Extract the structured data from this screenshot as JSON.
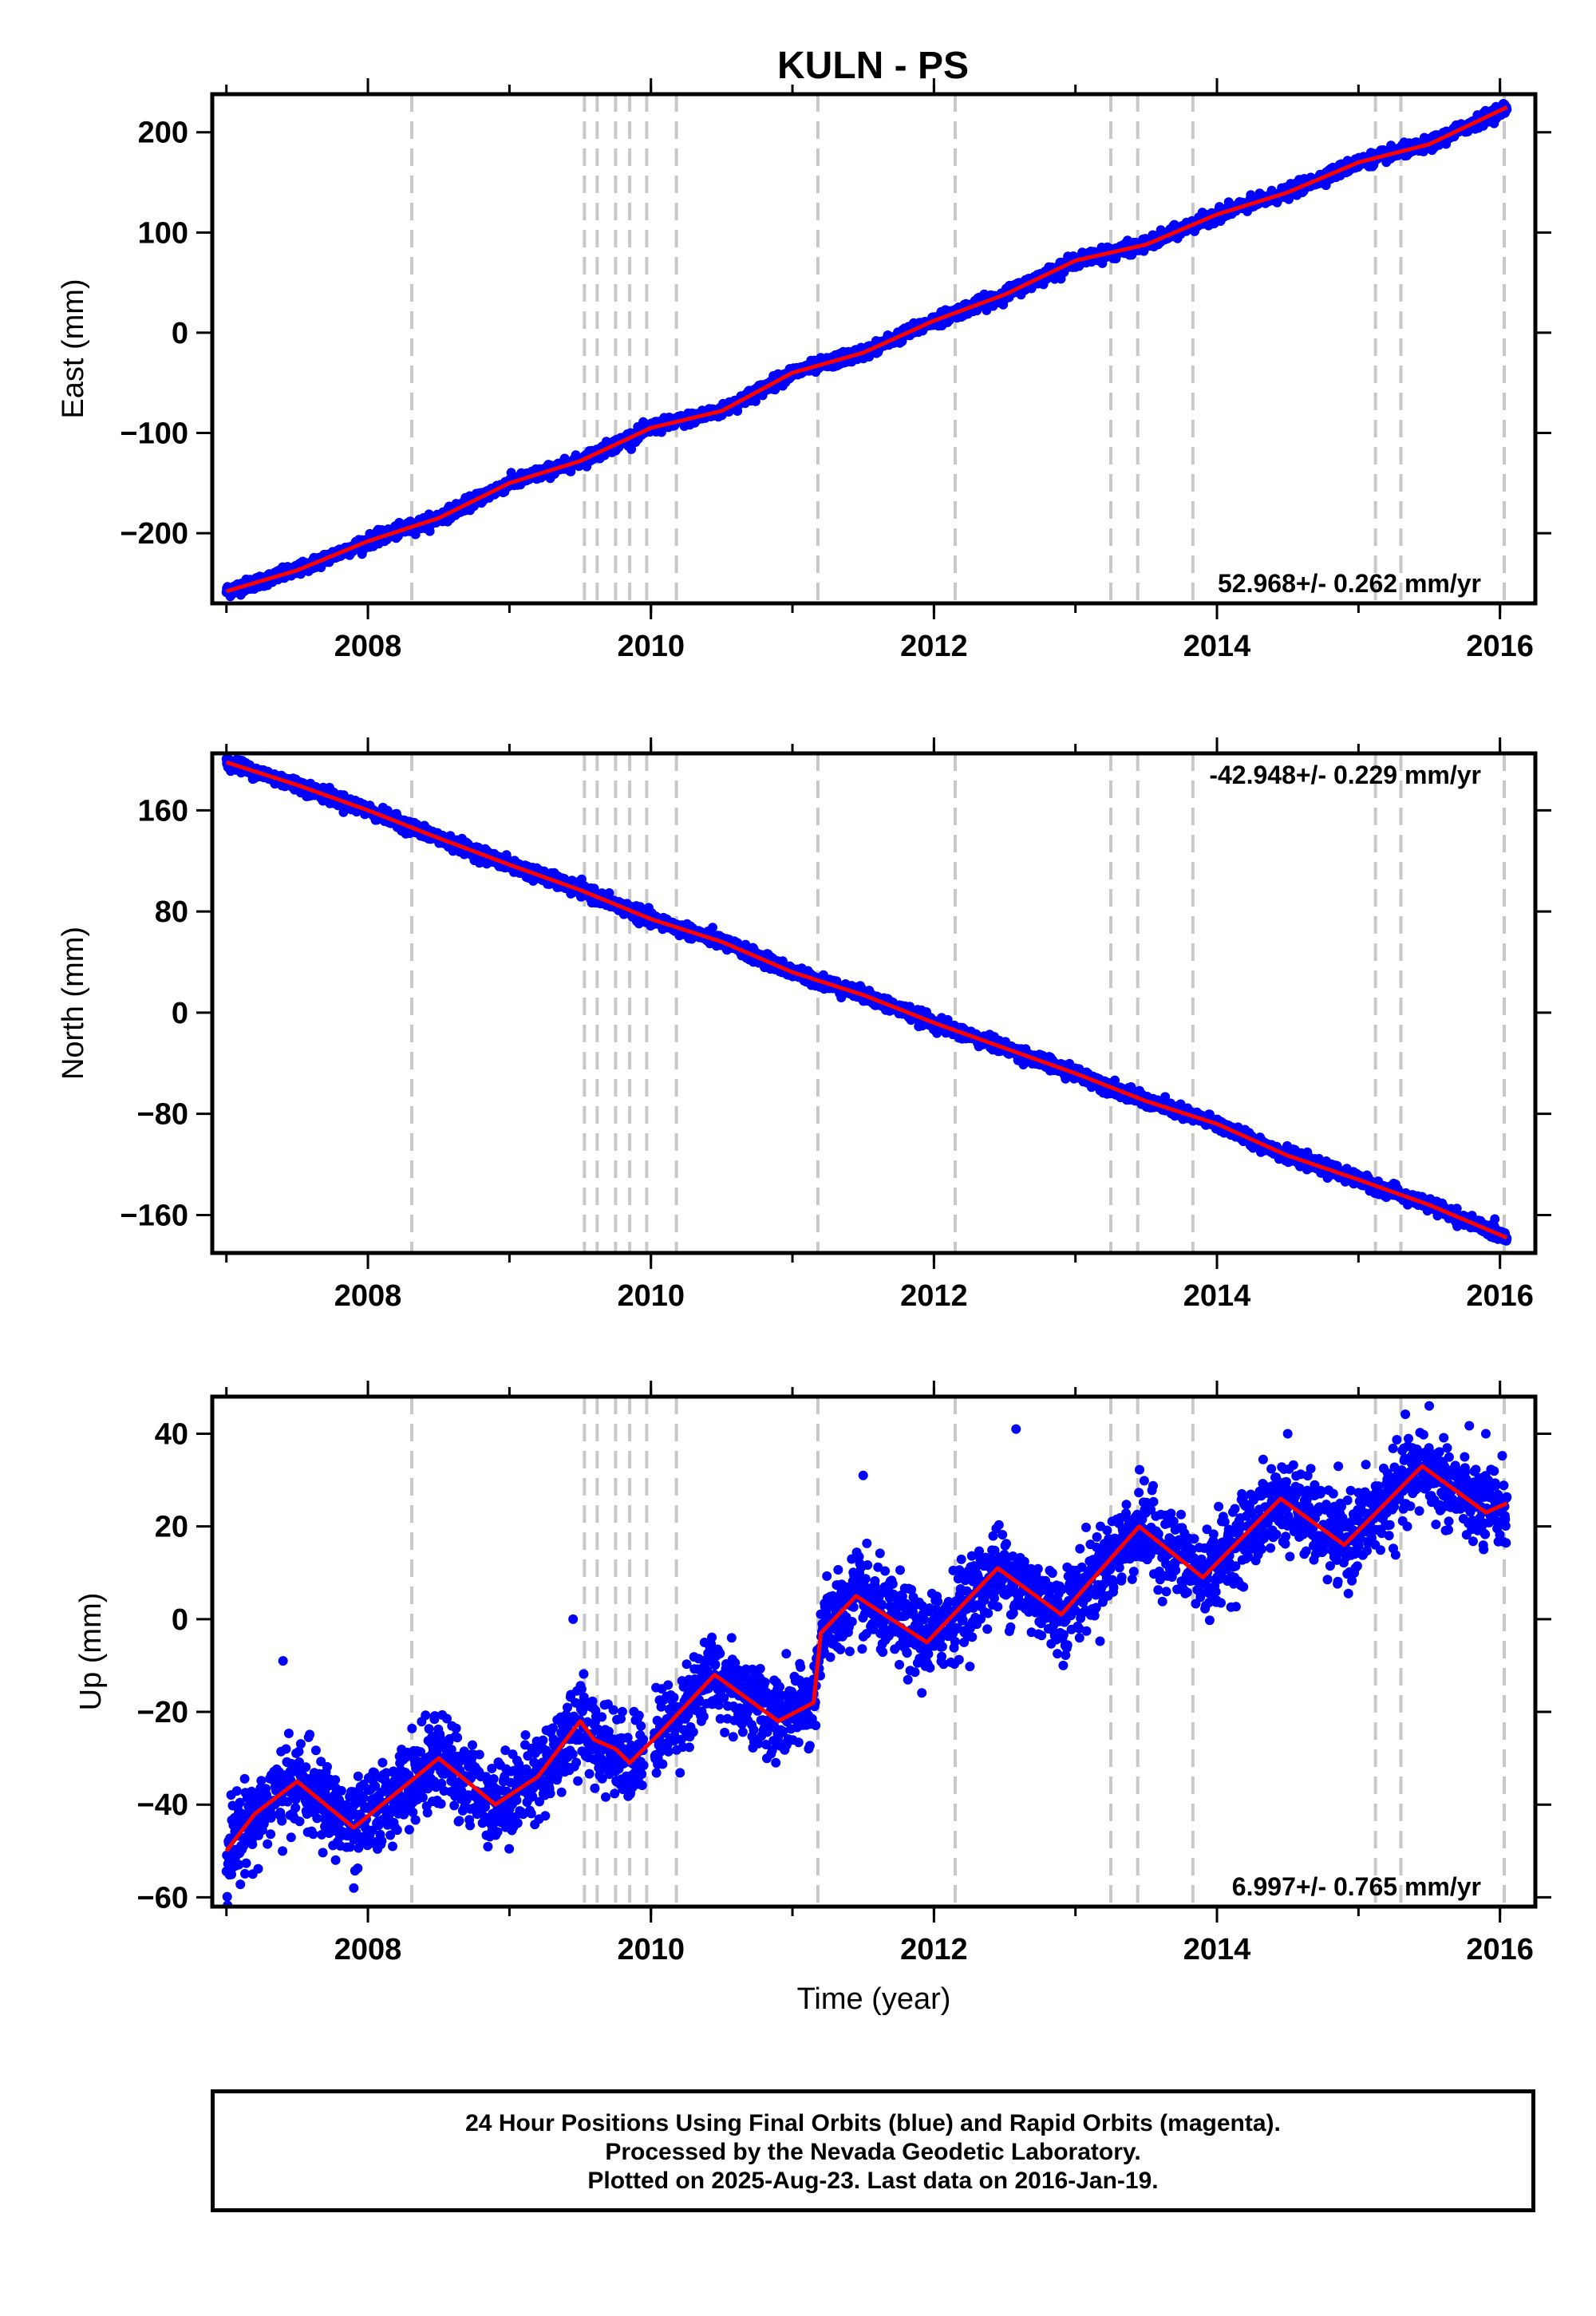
{
  "title": "KULN - PS",
  "footer": {
    "line1": "24 Hour Positions Using Final Orbits (blue) and Rapid Orbits (magenta).",
    "line2": "Processed by the Nevada Geodetic Laboratory.",
    "line3": "Plotted on 2025-Aug-23. Last data on 2016-Jan-19."
  },
  "colors": {
    "points": "#0000ff",
    "model": "#ff0000",
    "steps": "#c8c8c8"
  },
  "chart_data": [
    {
      "type": "scatter",
      "component": "east",
      "ylabel": "East (mm)",
      "xlabel": "",
      "xlim": [
        2006.9,
        2016.25
      ],
      "ylim": [
        -270,
        238
      ],
      "xticks": [
        2008,
        2010,
        2012,
        2014,
        2016
      ],
      "yticks": [
        -200,
        -100,
        0,
        100,
        200
      ],
      "yticklabels": [
        "−200",
        "−100",
        "0",
        "100",
        "200"
      ],
      "rate_label": "52.968+/- 0.262 mm/yr",
      "rate_position": "bottom-right",
      "model_x": [
        2007.0,
        2007.5,
        2008.0,
        2008.5,
        2009.0,
        2009.5,
        2010.0,
        2010.5,
        2011.0,
        2011.5,
        2012.0,
        2012.5,
        2013.0,
        2013.5,
        2014.0,
        2014.5,
        2015.0,
        2015.5,
        2016.05
      ],
      "model_y": [
        -258,
        -237,
        -208,
        -185,
        -150,
        -128,
        -95,
        -78,
        -40,
        -20,
        12,
        38,
        72,
        88,
        118,
        140,
        170,
        188,
        225
      ],
      "scatter_noise_mm": 3
    },
    {
      "type": "scatter",
      "component": "north",
      "ylabel": "North (mm)",
      "xlabel": "",
      "xlim": [
        2006.9,
        2016.25
      ],
      "ylim": [
        -190,
        205
      ],
      "xticks": [
        2008,
        2010,
        2012,
        2014,
        2016
      ],
      "yticks": [
        -160,
        -80,
        0,
        80,
        160
      ],
      "yticklabels": [
        "−160",
        "−80",
        "0",
        "80",
        "160"
      ],
      "rate_label": "-42.948+/- 0.229 mm/yr",
      "rate_position": "top-right",
      "model_x": [
        2007.0,
        2007.5,
        2008.0,
        2008.5,
        2009.0,
        2009.5,
        2010.0,
        2010.5,
        2011.0,
        2011.5,
        2012.0,
        2012.5,
        2013.0,
        2013.5,
        2014.0,
        2014.5,
        2015.0,
        2015.5,
        2016.05
      ],
      "model_y": [
        198,
        180,
        160,
        138,
        117,
        97,
        74,
        56,
        32,
        14,
        -8,
        -28,
        -48,
        -70,
        -88,
        -113,
        -132,
        -152,
        -178
      ],
      "scatter_noise_mm": 2.5
    },
    {
      "type": "scatter",
      "component": "up",
      "ylabel": "Up (mm)",
      "xlabel": "Time (year)",
      "xlim": [
        2006.9,
        2016.25
      ],
      "ylim": [
        -62,
        48
      ],
      "xticks": [
        2008,
        2010,
        2012,
        2014,
        2016
      ],
      "yticks": [
        -60,
        -40,
        -20,
        0,
        20,
        40
      ],
      "yticklabels": [
        "−60",
        "−40",
        "−20",
        "0",
        "20",
        "40"
      ],
      "rate_label": "6.997+/- 0.765 mm/yr",
      "rate_position": "bottom-right",
      "model_x": [
        2007.0,
        2007.2,
        2007.5,
        2007.9,
        2008.3,
        2008.5,
        2008.9,
        2009.2,
        2009.5,
        2009.6,
        2009.75,
        2009.85,
        2009.95,
        2010.05,
        2010.45,
        2010.9,
        2011.15,
        2011.2,
        2011.45,
        2011.95,
        2012.45,
        2012.9,
        2013.45,
        2013.9,
        2014.45,
        2014.9,
        2015.45,
        2015.9,
        2016.05
      ],
      "model_y": [
        -50,
        -42,
        -35,
        -45,
        -35,
        -30,
        -40,
        -34,
        -22,
        -26,
        -28,
        -31,
        -28,
        -25,
        -12,
        -22,
        -18,
        -3,
        5,
        -5,
        11,
        1,
        20,
        9,
        26,
        16,
        33,
        23,
        25
      ],
      "scatter_noise_mm": 4.5,
      "outliers": [
        [
          2007.4,
          -9
        ],
        [
          2009.45,
          0
        ],
        [
          2011.5,
          31
        ],
        [
          2012.58,
          41
        ],
        [
          2014.5,
          40
        ],
        [
          2015.5,
          46
        ],
        [
          2015.9,
          40
        ],
        [
          2007.9,
          -58
        ]
      ]
    }
  ],
  "step_epochs": [
    2008.31,
    2009.53,
    2009.62,
    2009.75,
    2009.85,
    2009.97,
    2010.18,
    2011.18,
    2012.15,
    2013.25,
    2013.44,
    2013.83,
    2015.12,
    2015.3,
    2016.03
  ]
}
